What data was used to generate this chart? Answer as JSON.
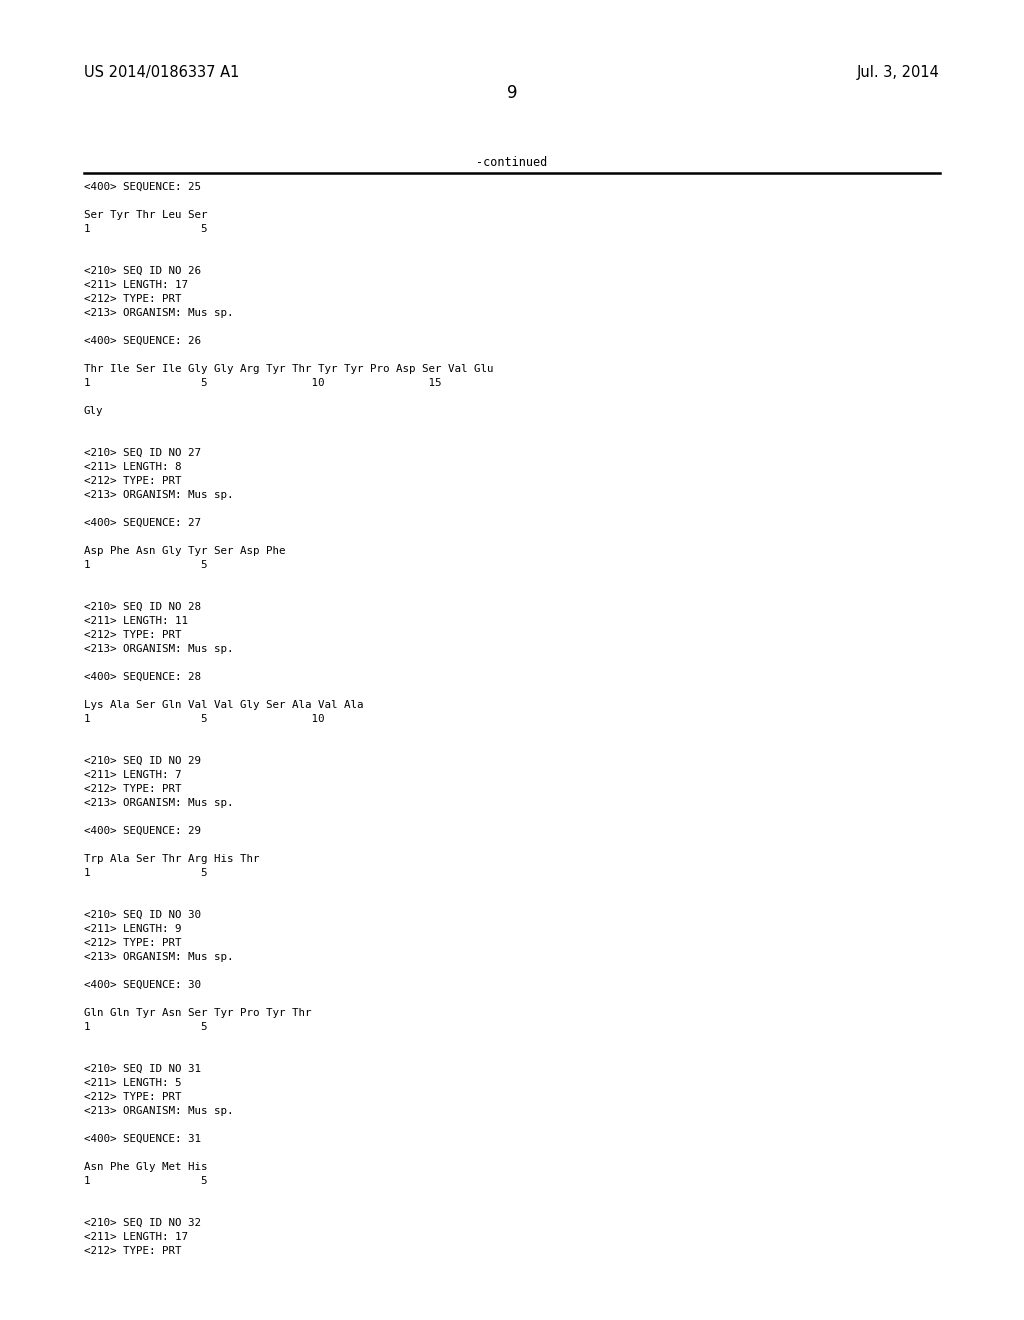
{
  "bg_color": "#ffffff",
  "header_left": "US 2014/0186337 A1",
  "header_right": "Jul. 3, 2014",
  "page_number": "9",
  "continued_text": "-continued",
  "content": [
    "<400> SEQUENCE: 25",
    "",
    "Ser Tyr Thr Leu Ser",
    "1                 5",
    "",
    "",
    "<210> SEQ ID NO 26",
    "<211> LENGTH: 17",
    "<212> TYPE: PRT",
    "<213> ORGANISM: Mus sp.",
    "",
    "<400> SEQUENCE: 26",
    "",
    "Thr Ile Ser Ile Gly Gly Arg Tyr Thr Tyr Tyr Pro Asp Ser Val Glu",
    "1                 5                10                15",
    "",
    "Gly",
    "",
    "",
    "<210> SEQ ID NO 27",
    "<211> LENGTH: 8",
    "<212> TYPE: PRT",
    "<213> ORGANISM: Mus sp.",
    "",
    "<400> SEQUENCE: 27",
    "",
    "Asp Phe Asn Gly Tyr Ser Asp Phe",
    "1                 5",
    "",
    "",
    "<210> SEQ ID NO 28",
    "<211> LENGTH: 11",
    "<212> TYPE: PRT",
    "<213> ORGANISM: Mus sp.",
    "",
    "<400> SEQUENCE: 28",
    "",
    "Lys Ala Ser Gln Val Val Gly Ser Ala Val Ala",
    "1                 5                10",
    "",
    "",
    "<210> SEQ ID NO 29",
    "<211> LENGTH: 7",
    "<212> TYPE: PRT",
    "<213> ORGANISM: Mus sp.",
    "",
    "<400> SEQUENCE: 29",
    "",
    "Trp Ala Ser Thr Arg His Thr",
    "1                 5",
    "",
    "",
    "<210> SEQ ID NO 30",
    "<211> LENGTH: 9",
    "<212> TYPE: PRT",
    "<213> ORGANISM: Mus sp.",
    "",
    "<400> SEQUENCE: 30",
    "",
    "Gln Gln Tyr Asn Ser Tyr Pro Tyr Thr",
    "1                 5",
    "",
    "",
    "<210> SEQ ID NO 31",
    "<211> LENGTH: 5",
    "<212> TYPE: PRT",
    "<213> ORGANISM: Mus sp.",
    "",
    "<400> SEQUENCE: 31",
    "",
    "Asn Phe Gly Met His",
    "1                 5",
    "",
    "",
    "<210> SEQ ID NO 32",
    "<211> LENGTH: 17",
    "<212> TYPE: PRT"
  ]
}
